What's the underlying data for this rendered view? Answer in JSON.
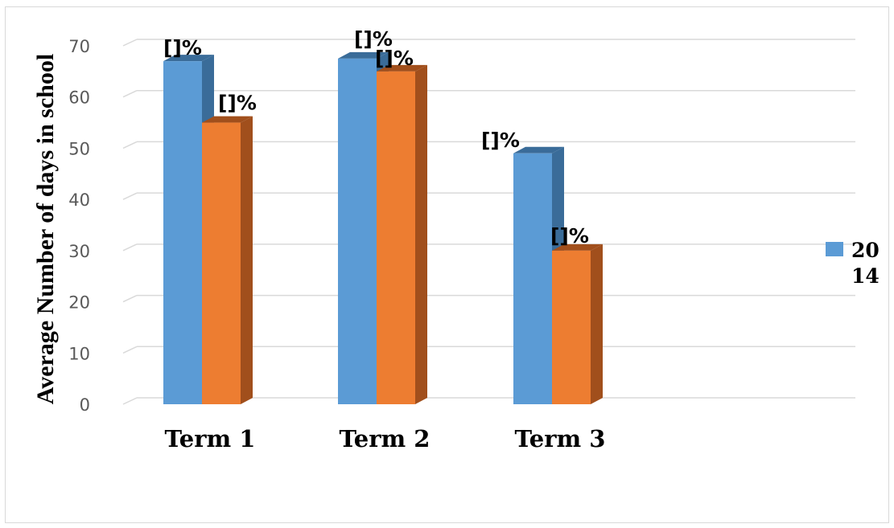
{
  "chart_data": {
    "type": "bar",
    "title": "",
    "xlabel": "",
    "ylabel": "Average Number of days in school",
    "ylim": [
      0,
      70
    ],
    "yticks": [
      "0",
      "10",
      "20",
      "30",
      "40",
      "50",
      "60",
      "70"
    ],
    "categories": [
      "Term 1",
      "Term 2",
      "Term 3"
    ],
    "series": [
      {
        "name": "2014",
        "values": [
          67,
          67.5,
          49
        ],
        "data_labels": [
          "[]%",
          "[]%",
          "[]%"
        ]
      },
      {
        "name": "",
        "values": [
          55,
          65,
          30
        ],
        "data_labels": [
          "[]%",
          "[]%",
          "[]%"
        ]
      }
    ],
    "legend": {
      "position": "right",
      "entries": [
        "20",
        "14"
      ]
    },
    "grid": true,
    "colors": {
      "series_0": "#5b9bd5",
      "series_0_side": "#3a6c99",
      "series_1": "#ed7d31",
      "series_1_side": "#a14f1c",
      "grid": "#d9d9d9"
    }
  }
}
